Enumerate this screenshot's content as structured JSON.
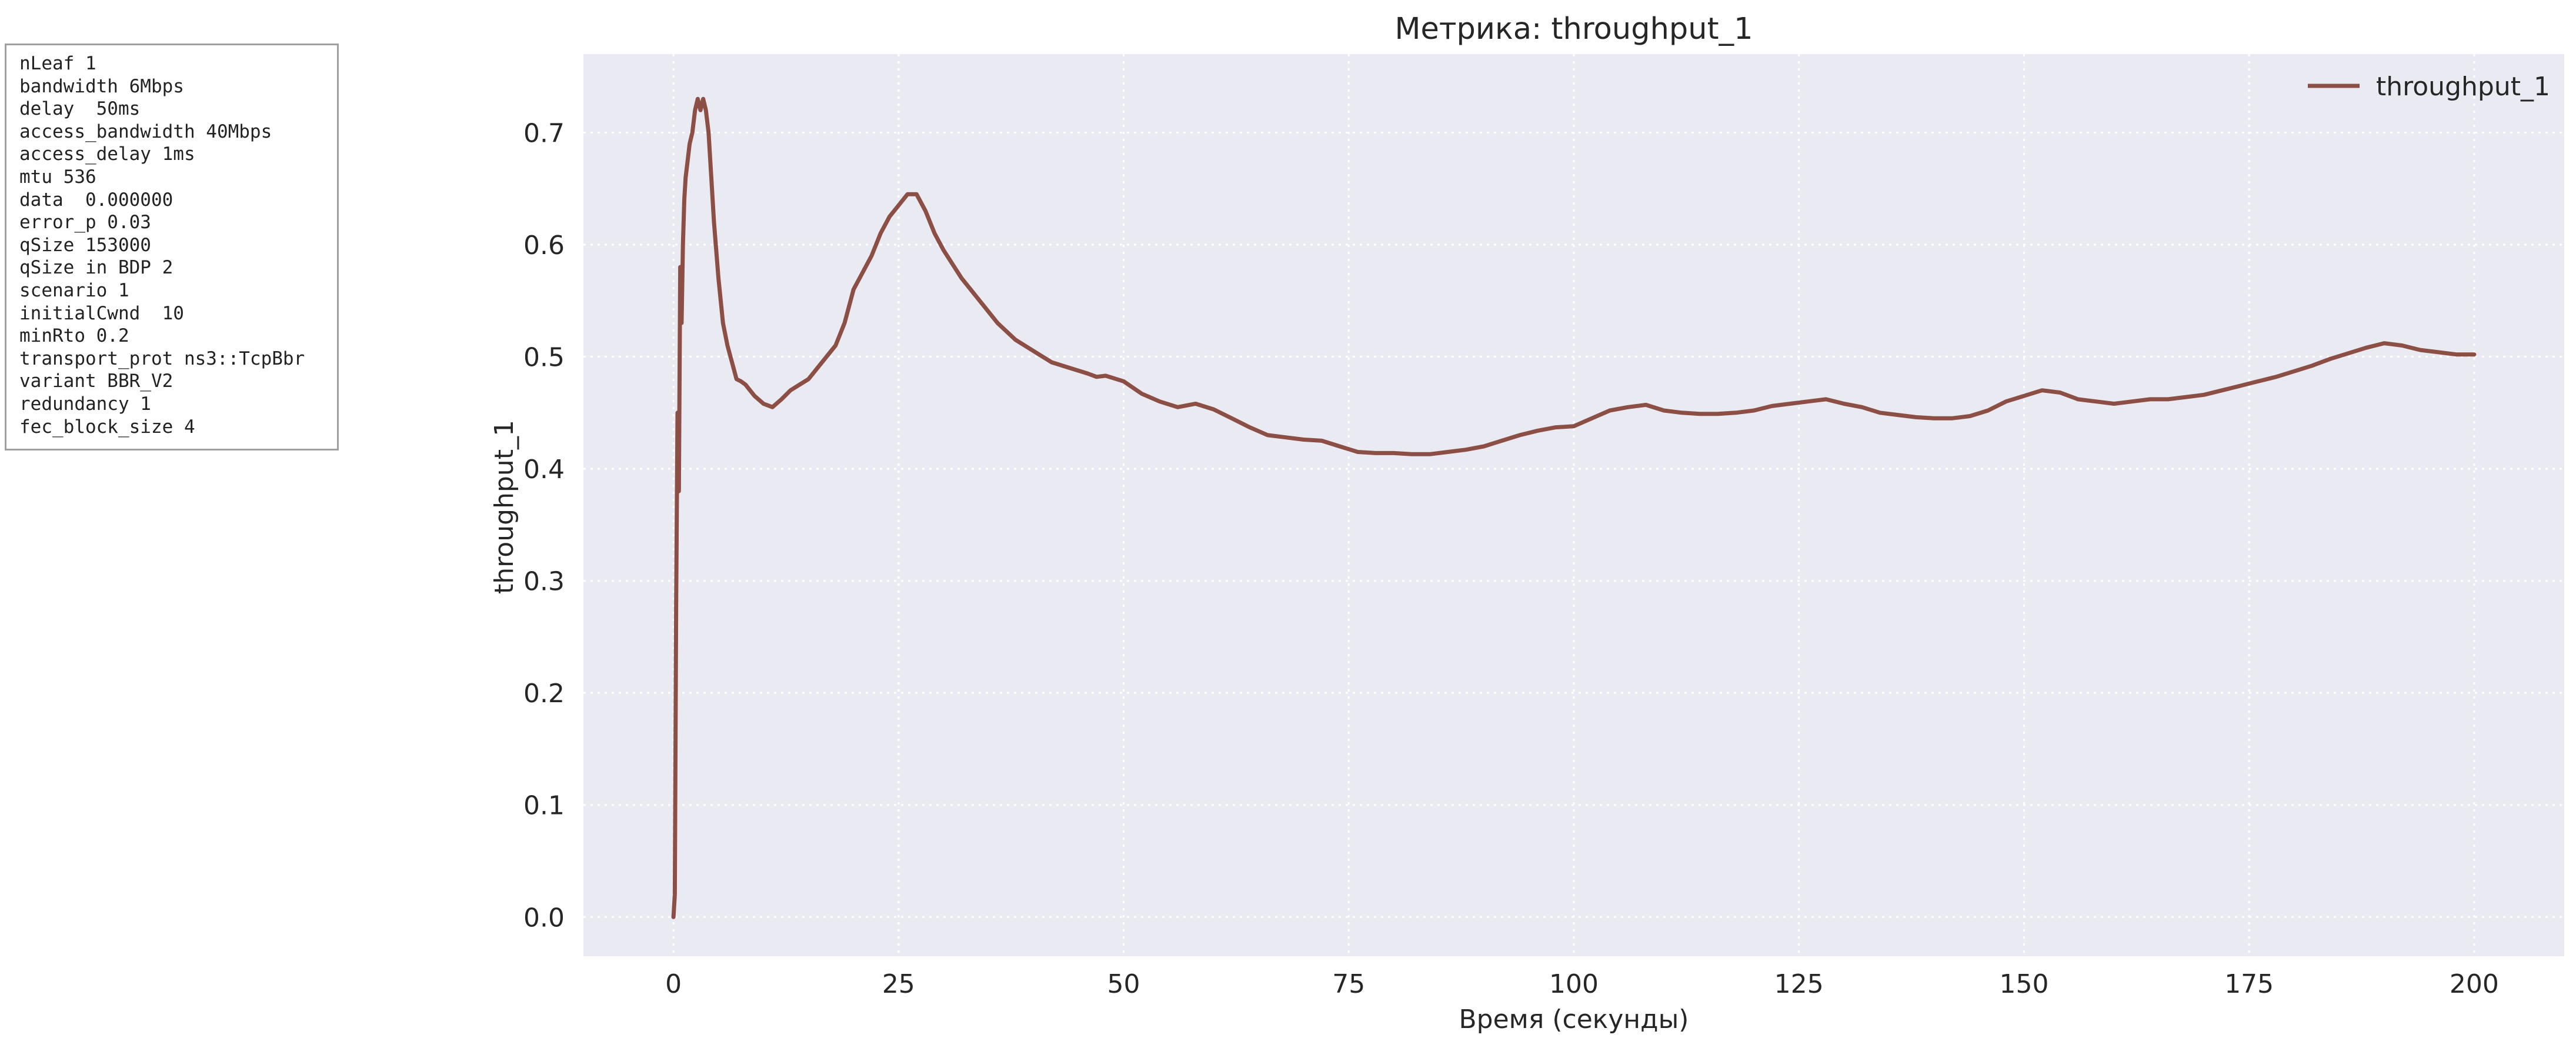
{
  "params": [
    "nLeaf 1",
    "bandwidth 6Mbps",
    "delay  50ms",
    "access_bandwidth 40Mbps",
    "access_delay 1ms",
    "mtu 536",
    "data  0.000000",
    "error_p 0.03",
    "qSize 153000",
    "qSize in BDP 2",
    "scenario 1",
    "initialCwnd  10",
    "minRto 0.2",
    "transport_prot ns3::TcpBbr",
    "variant BBR_V2",
    "redundancy 1",
    "fec_block_size 4"
  ],
  "chart_data": {
    "type": "line",
    "title": "Метрика: throughput_1",
    "xlabel": "Время (секунды)",
    "ylabel": "throughput_1",
    "xlim": [
      -10,
      210
    ],
    "ylim": [
      -0.035,
      0.77
    ],
    "xticks": [
      0,
      25,
      50,
      75,
      100,
      125,
      150,
      175,
      200
    ],
    "yticks": [
      0.0,
      0.1,
      0.2,
      0.3,
      0.4,
      0.5,
      0.6,
      0.7
    ],
    "ytick_labels": [
      "0.0",
      "0.1",
      "0.2",
      "0.3",
      "0.4",
      "0.5",
      "0.6",
      "0.7"
    ],
    "grid": true,
    "legend_position": "top-right",
    "background": "#eaeaf2",
    "series": [
      {
        "name": "throughput_1",
        "color": "#8c4f45",
        "x": [
          0,
          0.15,
          0.3,
          0.45,
          0.6,
          0.75,
          0.9,
          1.05,
          1.2,
          1.35,
          1.5,
          1.8,
          2.1,
          2.4,
          2.7,
          3.0,
          3.3,
          3.6,
          3.9,
          4.2,
          4.5,
          5,
          5.5,
          6,
          6.5,
          7,
          7.5,
          8,
          9,
          10,
          11,
          12,
          13,
          14,
          15,
          16,
          17,
          18,
          19,
          20,
          21,
          22,
          23,
          24,
          25,
          26,
          27,
          28,
          29,
          30,
          32,
          34,
          36,
          38,
          40,
          42,
          44,
          46,
          47,
          48,
          50,
          52,
          54,
          56,
          58,
          60,
          62,
          64,
          66,
          68,
          70,
          72,
          74,
          76,
          78,
          80,
          82,
          84,
          86,
          88,
          90,
          92,
          94,
          96,
          98,
          100,
          102,
          104,
          106,
          108,
          110,
          112,
          114,
          116,
          118,
          120,
          122,
          124,
          126,
          128,
          130,
          132,
          134,
          136,
          138,
          140,
          142,
          144,
          146,
          148,
          150,
          152,
          154,
          156,
          158,
          160,
          162,
          164,
          166,
          168,
          170,
          172,
          174,
          176,
          178,
          180,
          182,
          184,
          186,
          188,
          189,
          190,
          192,
          194,
          196,
          198,
          200
        ],
        "y": [
          0.0,
          0.02,
          0.28,
          0.45,
          0.38,
          0.58,
          0.53,
          0.6,
          0.64,
          0.66,
          0.67,
          0.69,
          0.7,
          0.72,
          0.73,
          0.72,
          0.73,
          0.72,
          0.7,
          0.66,
          0.62,
          0.57,
          0.53,
          0.51,
          0.495,
          0.48,
          0.478,
          0.475,
          0.465,
          0.458,
          0.455,
          0.462,
          0.47,
          0.475,
          0.48,
          0.49,
          0.5,
          0.51,
          0.53,
          0.56,
          0.575,
          0.59,
          0.61,
          0.625,
          0.635,
          0.645,
          0.645,
          0.63,
          0.61,
          0.595,
          0.57,
          0.55,
          0.53,
          0.515,
          0.505,
          0.495,
          0.49,
          0.485,
          0.482,
          0.483,
          0.478,
          0.467,
          0.46,
          0.455,
          0.458,
          0.453,
          0.445,
          0.437,
          0.43,
          0.428,
          0.426,
          0.425,
          0.42,
          0.415,
          0.414,
          0.414,
          0.413,
          0.413,
          0.415,
          0.417,
          0.42,
          0.425,
          0.43,
          0.434,
          0.437,
          0.438,
          0.445,
          0.452,
          0.455,
          0.457,
          0.452,
          0.45,
          0.449,
          0.449,
          0.45,
          0.452,
          0.456,
          0.458,
          0.46,
          0.462,
          0.458,
          0.455,
          0.45,
          0.448,
          0.446,
          0.445,
          0.445,
          0.447,
          0.452,
          0.46,
          0.465,
          0.47,
          0.468,
          0.462,
          0.46,
          0.458,
          0.46,
          0.462,
          0.462,
          0.464,
          0.466,
          0.47,
          0.474,
          0.478,
          0.482,
          0.487,
          0.492,
          0.498,
          0.503,
          0.508,
          0.51,
          0.512,
          0.51,
          0.506,
          0.504,
          0.502,
          0.502
        ]
      }
    ]
  }
}
